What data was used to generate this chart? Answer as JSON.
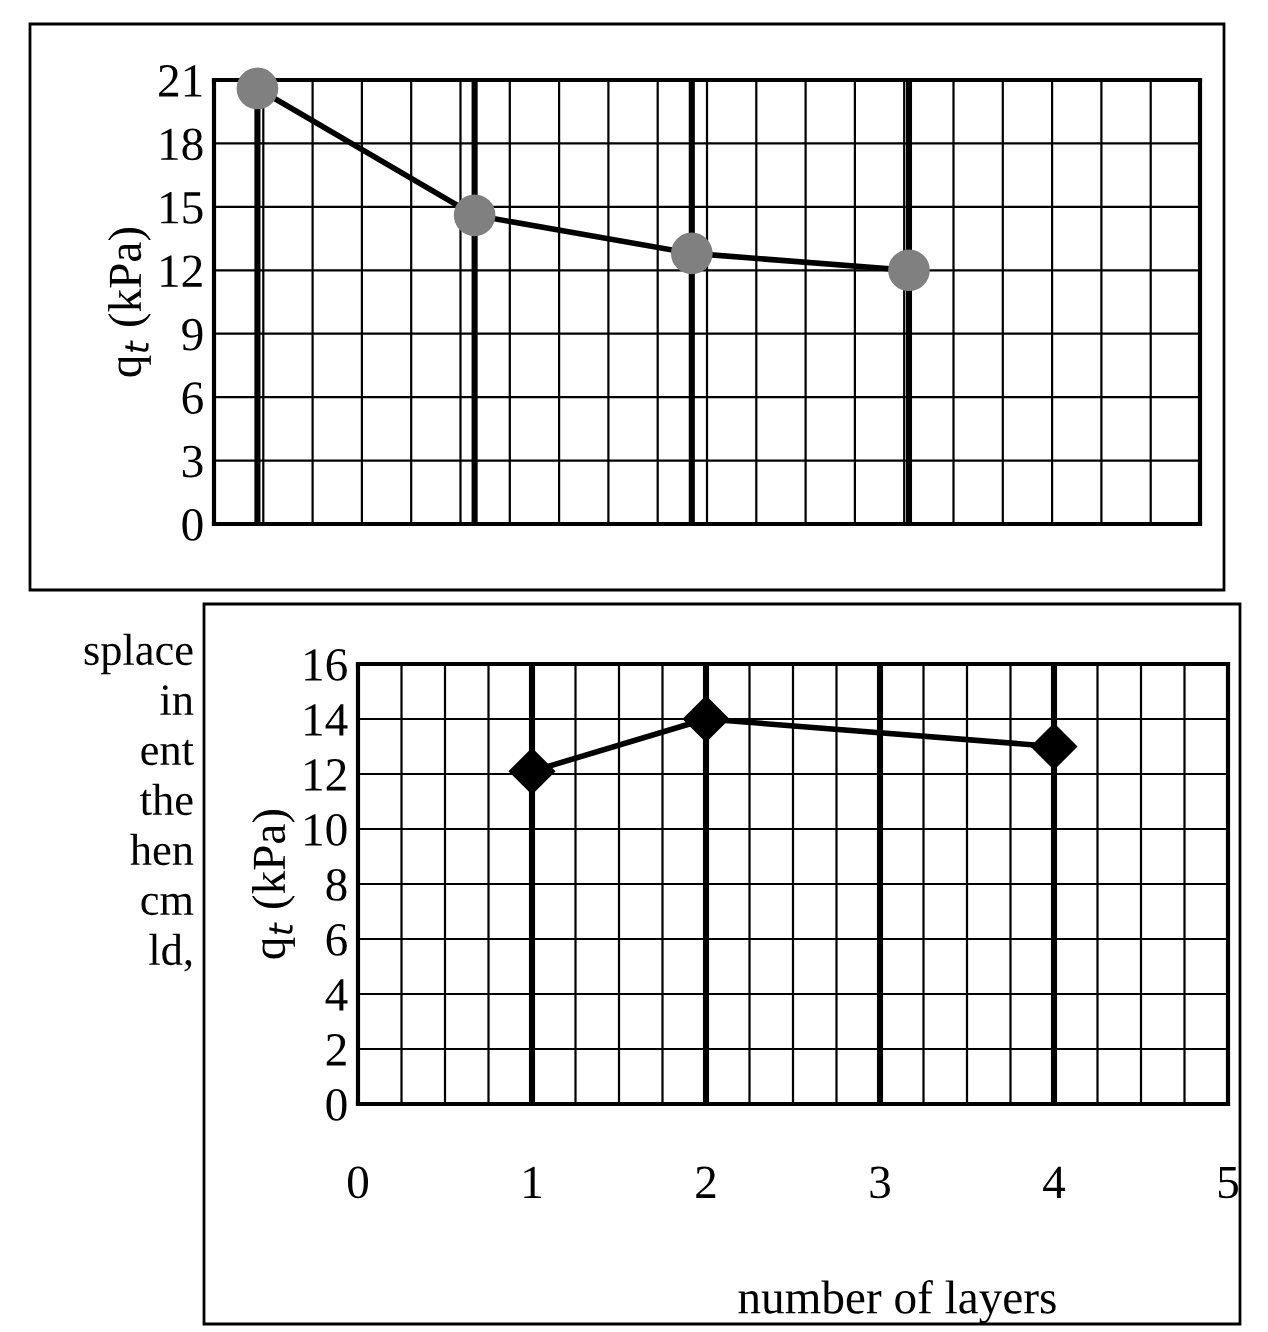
{
  "chart_data": [
    {
      "type": "line",
      "ylabel": "q$_{t}$ (kPa)",
      "categories": [
        null,
        null,
        null,
        null
      ],
      "series": [
        {
          "color": "#808080",
          "values": [
            20.6,
            14.6,
            12.8,
            12.0
          ]
        }
      ],
      "ylim": [
        0,
        21
      ],
      "yticks": [
        0,
        3,
        6,
        9,
        12,
        15,
        18,
        21
      ],
      "grid": true,
      "marker": "circle",
      "tick_labels": "y"
    },
    {
      "type": "line",
      "ylabel": "q$_{t}$ (kPa)",
      "xlabel": "number of layers",
      "x": [
        1,
        2,
        4
      ],
      "series": [
        {
          "color": "#000000",
          "values": [
            12.1,
            14.0,
            13.0
          ]
        }
      ],
      "xlim": [
        0,
        5
      ],
      "xticks": [
        0,
        1,
        2,
        3,
        4,
        5
      ],
      "ylim": [
        0,
        16
      ],
      "yticks": [
        0,
        2,
        4,
        6,
        8,
        10,
        12,
        14,
        16
      ],
      "grid": true,
      "marker": "diamond",
      "annotations": [
        "splace",
        "in",
        "ent",
        "the",
        "hen",
        "cm",
        "ld,"
      ]
    }
  ]
}
